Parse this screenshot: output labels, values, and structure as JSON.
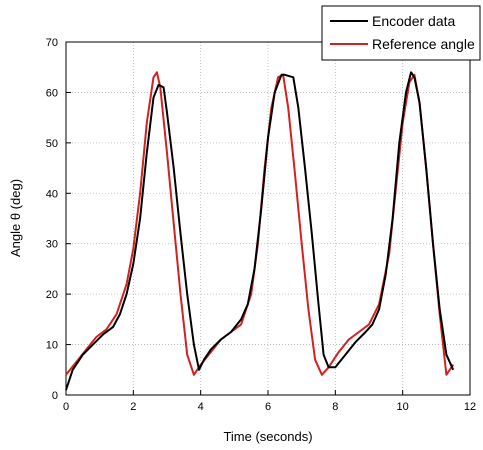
{
  "chart_data": {
    "type": "line",
    "xlabel": "Time (seconds)",
    "ylabel": "Angle θ (deg)",
    "xlim": [
      0,
      12
    ],
    "ylim": [
      0,
      70
    ],
    "xticks": [
      0,
      2,
      4,
      6,
      8,
      10,
      12
    ],
    "yticks": [
      0,
      10,
      20,
      30,
      40,
      50,
      60,
      70
    ],
    "grid": true,
    "legend_position": "top-right",
    "series": [
      {
        "name": "Encoder data",
        "color": "#000000",
        "x": [
          0.0,
          0.2,
          0.5,
          0.8,
          1.1,
          1.4,
          1.6,
          1.8,
          2.0,
          2.2,
          2.4,
          2.6,
          2.75,
          2.9,
          3.0,
          3.2,
          3.4,
          3.6,
          3.8,
          3.95,
          4.1,
          4.3,
          4.6,
          4.9,
          5.2,
          5.4,
          5.6,
          5.8,
          6.0,
          6.2,
          6.4,
          6.5,
          6.75,
          6.9,
          7.1,
          7.3,
          7.5,
          7.65,
          7.8,
          8.0,
          8.3,
          8.6,
          8.9,
          9.1,
          9.3,
          9.5,
          9.7,
          9.9,
          10.1,
          10.25,
          10.35,
          10.5,
          10.7,
          10.9,
          11.1,
          11.3,
          11.5
        ],
        "y": [
          1,
          5,
          8,
          10,
          12,
          13.5,
          16,
          20,
          26,
          35,
          48,
          59,
          61.5,
          61,
          56,
          45,
          32,
          20,
          10,
          5,
          7,
          9,
          11,
          12.5,
          15,
          18,
          25,
          37,
          51,
          60,
          63.5,
          63.5,
          63,
          57,
          45,
          32,
          18,
          8,
          5.5,
          5.5,
          8,
          10.5,
          12.5,
          14,
          17,
          24,
          35,
          50,
          60,
          64,
          63,
          58,
          45,
          30,
          17,
          8,
          5
        ]
      },
      {
        "name": "Reference angle",
        "color": "#d42020",
        "x": [
          0.0,
          0.3,
          0.6,
          0.9,
          1.2,
          1.5,
          1.8,
          2.0,
          2.2,
          2.4,
          2.6,
          2.7,
          2.8,
          3.0,
          3.2,
          3.4,
          3.6,
          3.8,
          4.0,
          4.3,
          4.6,
          4.9,
          5.2,
          5.5,
          5.7,
          5.9,
          6.1,
          6.3,
          6.45,
          6.6,
          6.8,
          7.0,
          7.2,
          7.4,
          7.6,
          7.8,
          8.1,
          8.4,
          8.7,
          9.0,
          9.3,
          9.6,
          9.8,
          10.0,
          10.2,
          10.35,
          10.5,
          10.7,
          10.9,
          11.1,
          11.3,
          11.5
        ],
        "y": [
          4,
          6.5,
          9,
          11.5,
          13,
          16,
          22,
          29,
          40,
          54,
          63,
          64,
          61,
          48,
          34,
          20,
          8,
          4,
          6,
          8.5,
          11,
          12.5,
          14,
          20,
          30,
          45,
          57,
          63,
          63.5,
          57,
          44,
          30,
          17,
          7,
          4,
          5.5,
          8.5,
          11,
          12.5,
          14,
          18,
          28,
          41,
          54,
          62,
          63.5,
          58,
          45,
          30,
          16,
          4,
          6
        ]
      }
    ]
  }
}
